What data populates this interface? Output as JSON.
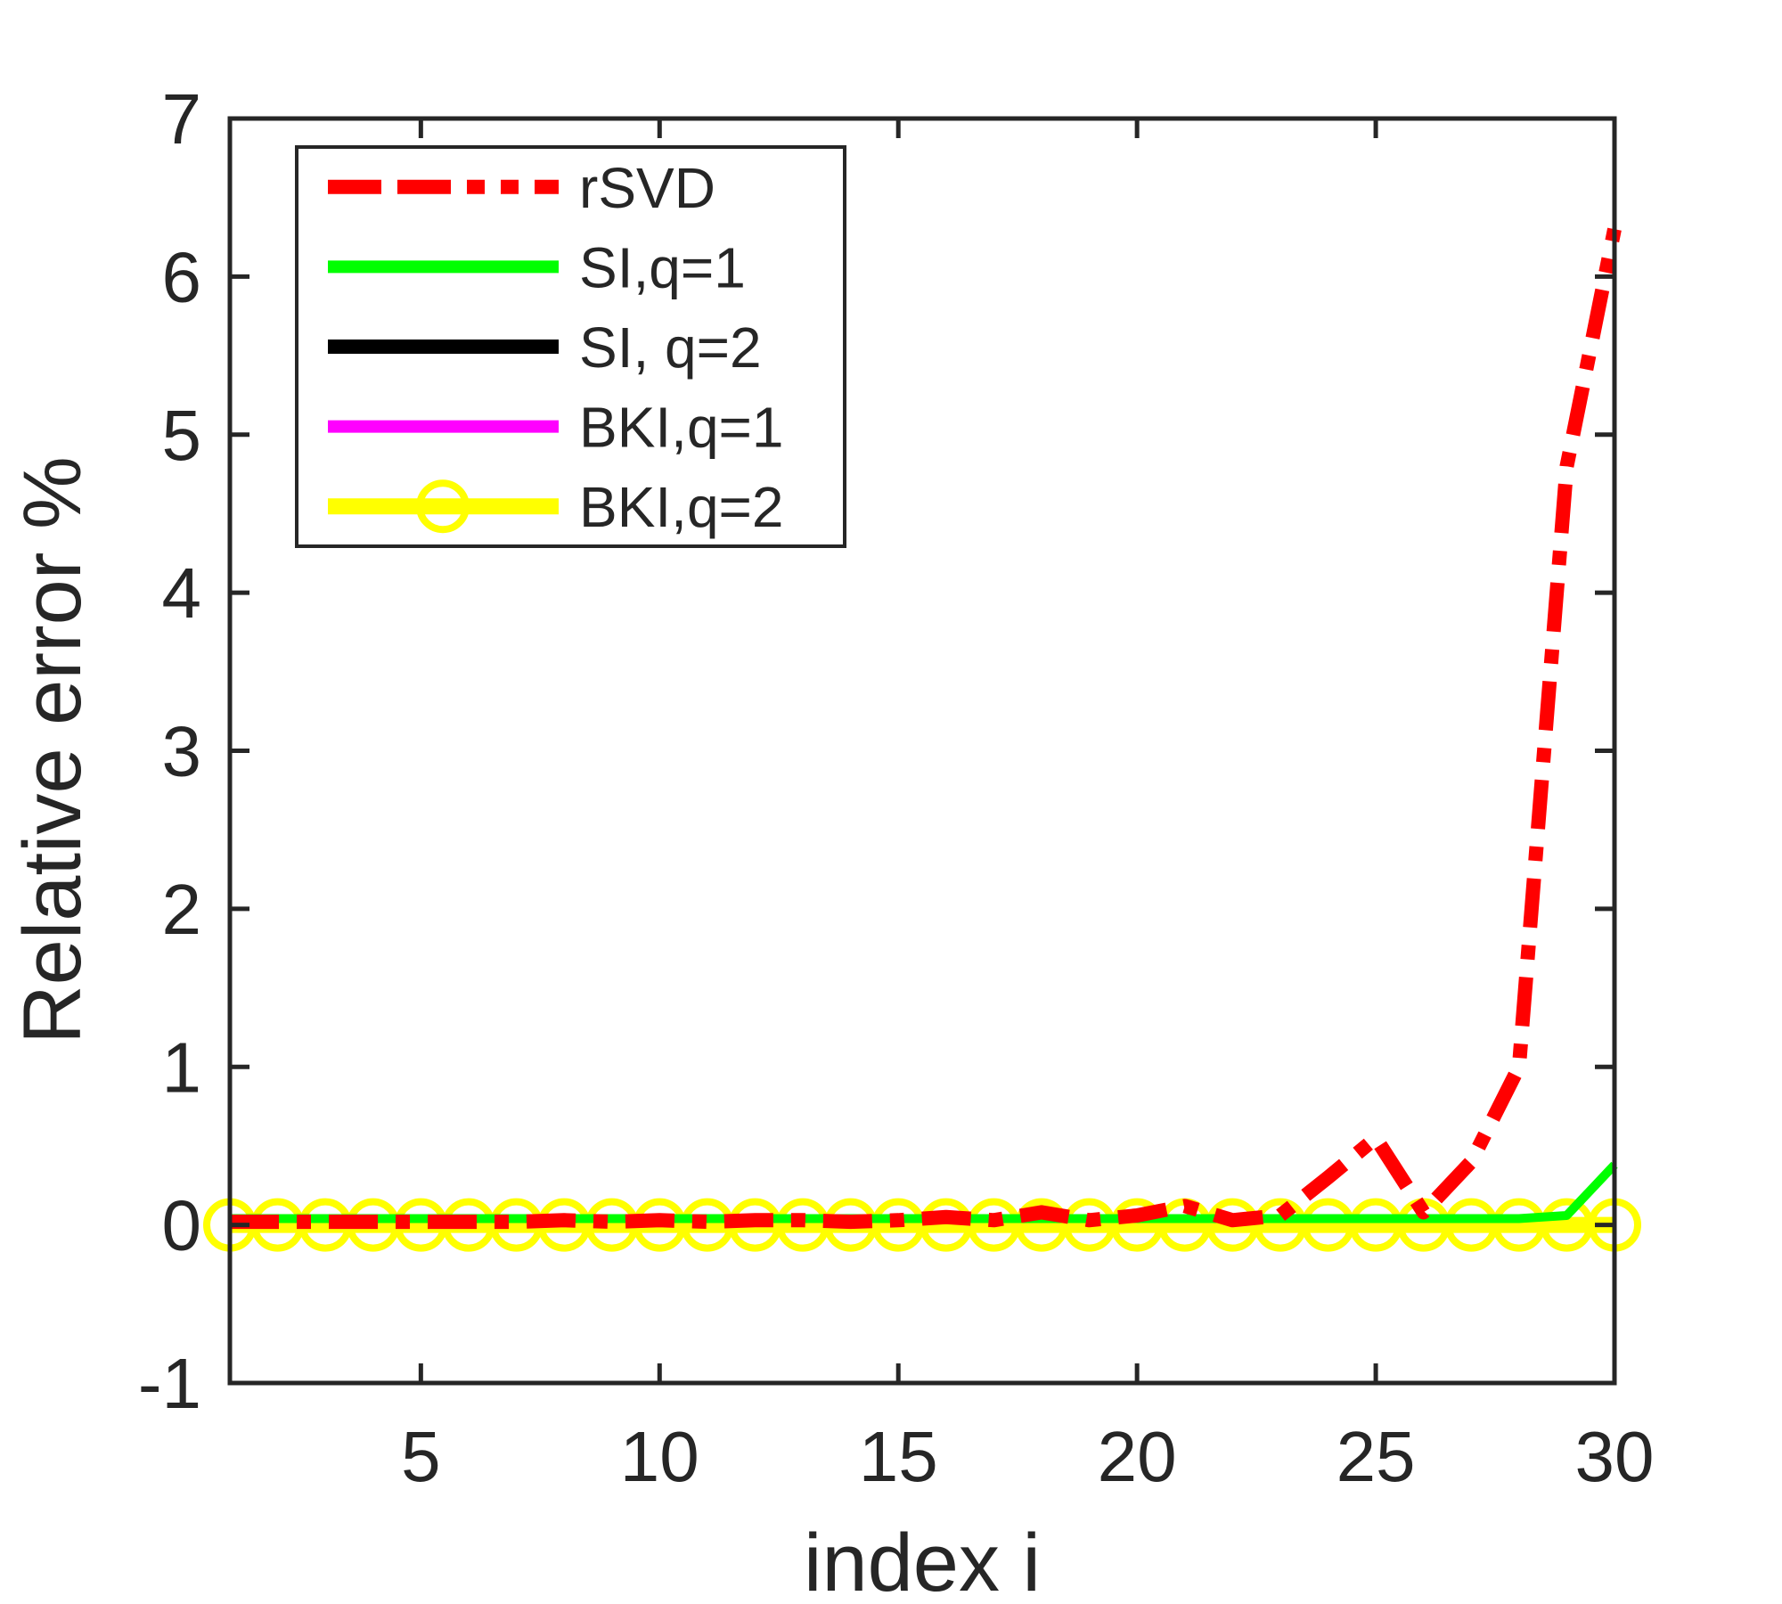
{
  "figure": {
    "background": "#ffffff",
    "axis_color": "#262626"
  },
  "chart_data": {
    "type": "line",
    "title": "",
    "xlabel": "index i",
    "ylabel": "Relative error %",
    "xlim": [
      1,
      30
    ],
    "ylim": [
      -1,
      7
    ],
    "x_ticks": [
      5,
      10,
      15,
      20,
      25,
      30
    ],
    "y_ticks": [
      -1,
      0,
      1,
      2,
      3,
      4,
      5,
      6,
      7
    ],
    "grid": false,
    "legend_position": "upper-left",
    "x": [
      1,
      2,
      3,
      4,
      5,
      6,
      7,
      8,
      9,
      10,
      11,
      12,
      13,
      14,
      15,
      16,
      17,
      18,
      19,
      20,
      21,
      22,
      23,
      24,
      25,
      26,
      27,
      28,
      29,
      30
    ],
    "series": [
      {
        "name": "rSVD",
        "color": "#ff0000",
        "style": "dashdot",
        "width": 16,
        "marker": "none",
        "values": [
          0.02,
          0.02,
          0.02,
          0.02,
          0.02,
          0.02,
          0.02,
          0.03,
          0.02,
          0.03,
          0.02,
          0.03,
          0.03,
          0.02,
          0.03,
          0.05,
          0.03,
          0.08,
          0.03,
          0.06,
          0.12,
          0.03,
          0.06,
          0.3,
          0.55,
          0.08,
          0.4,
          1.0,
          4.8,
          6.3
        ]
      },
      {
        "name": "SI,q=1",
        "color": "#00ff00",
        "style": "solid",
        "width": 10,
        "marker": "none",
        "values": [
          0.04,
          0.04,
          0.04,
          0.04,
          0.04,
          0.04,
          0.04,
          0.04,
          0.04,
          0.04,
          0.04,
          0.04,
          0.04,
          0.04,
          0.04,
          0.04,
          0.04,
          0.04,
          0.04,
          0.04,
          0.04,
          0.04,
          0.04,
          0.04,
          0.04,
          0.04,
          0.04,
          0.04,
          0.06,
          0.38
        ]
      },
      {
        "name": "SI, q=2",
        "color": "#000000",
        "style": "solid",
        "width": 16,
        "marker": "none",
        "values": [
          0,
          0,
          0,
          0,
          0,
          0,
          0,
          0,
          0,
          0,
          0,
          0,
          0,
          0,
          0,
          0,
          0,
          0,
          0,
          0,
          0,
          0,
          0,
          0,
          0,
          0,
          0,
          0,
          0,
          0
        ]
      },
      {
        "name": "BKI,q=1",
        "color": "#ff00ff",
        "style": "solid",
        "width": 8,
        "marker": "none",
        "values": [
          0,
          0,
          0,
          0,
          0,
          0,
          0,
          0,
          0,
          0,
          0,
          0,
          0,
          0,
          0,
          0,
          0,
          0,
          0,
          0,
          0,
          0,
          0,
          0,
          0,
          0,
          0,
          0,
          0,
          0
        ]
      },
      {
        "name": "BKI,q=2",
        "color": "#ffff00",
        "style": "solid",
        "width": 18,
        "marker": "circle",
        "values": [
          0,
          0,
          0,
          0,
          0,
          0,
          0,
          0,
          0,
          0,
          0,
          0,
          0,
          0,
          0,
          0,
          0,
          0,
          0,
          0,
          0,
          0,
          0,
          0,
          0,
          0,
          0,
          0,
          0,
          0
        ]
      }
    ],
    "draw_order": [
      2,
      3,
      4,
      1,
      0
    ]
  }
}
